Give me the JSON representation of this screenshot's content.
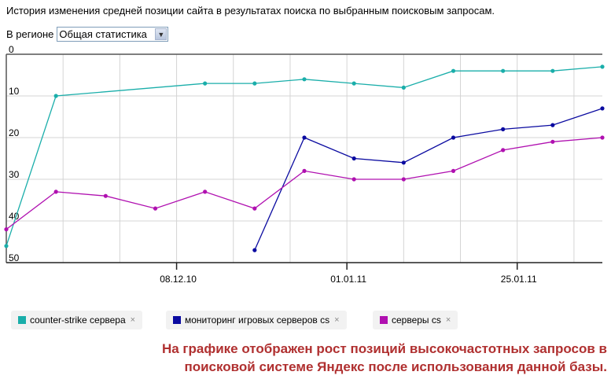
{
  "header": {
    "title": "История изменения средней позиции сайта в результатах поиска по выбранным поисковым запросам.",
    "region_label": "В регионе",
    "region_value": "Общая статистика"
  },
  "chart_data": {
    "type": "line",
    "title": "",
    "xlabel": "",
    "ylabel": "",
    "y_inverted": true,
    "ylim": [
      0,
      50
    ],
    "yticks": [
      "0",
      "10",
      "20",
      "30",
      "40",
      "50"
    ],
    "xlim": [
      "14.11.10",
      "06.02.11"
    ],
    "xtick_labels": [
      "08.12.10",
      "01.01.11",
      "25.01.11"
    ],
    "grid": true,
    "legend_placement": "bottom",
    "x": [
      "14.11.10",
      "21.11.10",
      "28.11.10",
      "05.12.10",
      "12.12.10",
      "19.12.10",
      "26.12.10",
      "02.01.11",
      "09.01.11",
      "16.01.11",
      "23.01.11",
      "30.01.11",
      "06.02.11"
    ],
    "series": [
      {
        "name": "counter-strike сервера",
        "color": "#1aaeaa",
        "values": [
          46,
          10,
          null,
          null,
          7,
          7,
          6,
          7,
          8,
          4,
          4,
          4,
          3
        ]
      },
      {
        "name": "мониторинг игровых серверов cs",
        "color": "#0a0aa0",
        "values": [
          null,
          null,
          null,
          null,
          null,
          47,
          20,
          25,
          26,
          20,
          18,
          17,
          13
        ]
      },
      {
        "name": "серверы cs",
        "color": "#b010b0",
        "values": [
          42,
          33,
          34,
          37,
          33,
          37,
          28,
          30,
          30,
          28,
          23,
          21,
          20
        ]
      }
    ]
  },
  "legend_remove_glyph": "×",
  "note": {
    "line1": "На графике отображен рост позиций высокочастотных запросов в",
    "line2": "поисковой системе Яндекс после использования данной базы."
  }
}
